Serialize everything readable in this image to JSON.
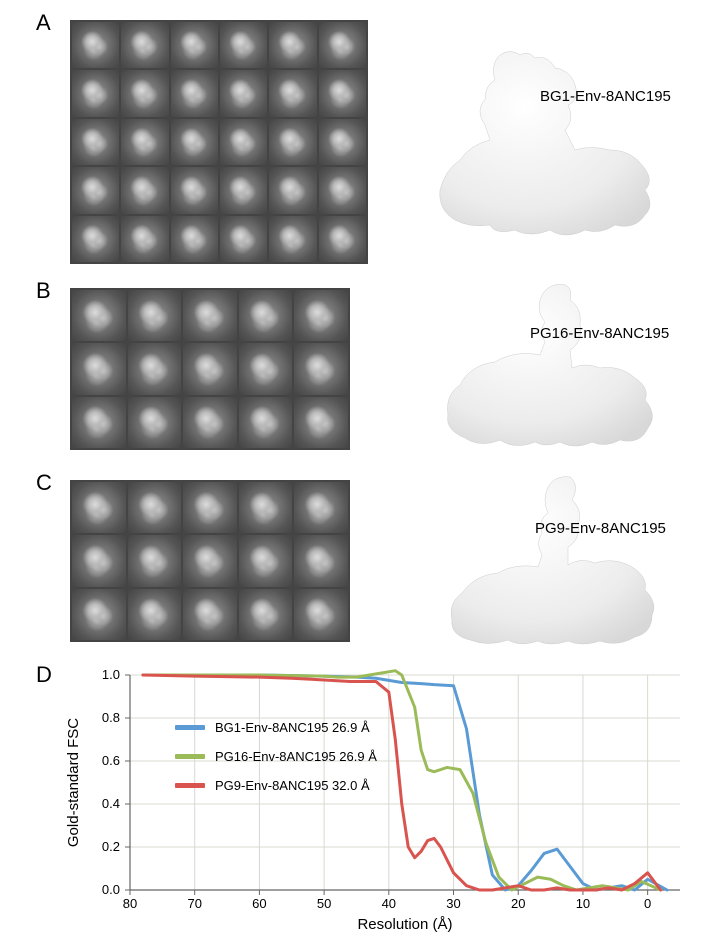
{
  "panels": {
    "A": {
      "label": "A",
      "grid_rows": 5,
      "grid_cols": 6,
      "structure_label": "BG1-Env-8ANC195"
    },
    "B": {
      "label": "B",
      "grid_rows": 3,
      "grid_cols": 5,
      "structure_label": "PG16-Env-8ANC195"
    },
    "C": {
      "label": "C",
      "grid_rows": 3,
      "grid_cols": 5,
      "structure_label": "PG9-Env-8ANC195"
    },
    "D": {
      "label": "D"
    }
  },
  "chart": {
    "type": "line",
    "xlabel": "Resolution (Å)",
    "ylabel": "Gold-standard FSC",
    "xlim": [
      80,
      -5
    ],
    "ylim": [
      0.0,
      1.0
    ],
    "xticks": [
      80,
      70,
      60,
      50,
      40,
      30,
      20,
      10,
      0
    ],
    "yticks": [
      0.0,
      0.2,
      0.4,
      0.6,
      0.8,
      1.0
    ],
    "background_color": "#ffffff",
    "grid_color": "#d9d9d0",
    "axis_color": "#666666",
    "series": [
      {
        "name": "BG1-Env-8ANC195 26.9 Å",
        "color": "#5b9bd5",
        "width": 3,
        "x": [
          78,
          70,
          60,
          50,
          45,
          42,
          40,
          38,
          35,
          33,
          30,
          28,
          26,
          24,
          22,
          20,
          18,
          16,
          14,
          12,
          10,
          8,
          6,
          4,
          2,
          0,
          -3
        ],
        "y": [
          1.0,
          1.0,
          1.0,
          0.995,
          0.99,
          0.985,
          0.975,
          0.965,
          0.96,
          0.955,
          0.95,
          0.75,
          0.35,
          0.07,
          0.0,
          0.02,
          0.09,
          0.17,
          0.19,
          0.11,
          0.03,
          0.0,
          0.01,
          0.02,
          0.0,
          0.05,
          0.0
        ]
      },
      {
        "name": "PG16-Env-8ANC195 26.9 Å",
        "color": "#9bbb59",
        "width": 3,
        "x": [
          78,
          70,
          60,
          50,
          48,
          45,
          43,
          41,
          39,
          38,
          36,
          35,
          34,
          33,
          31,
          29,
          27,
          25,
          23,
          21,
          19,
          17,
          15,
          13,
          11,
          9,
          7,
          5,
          3,
          1,
          -2
        ],
        "y": [
          1.0,
          1.0,
          1.0,
          0.995,
          0.99,
          0.99,
          1.0,
          1.01,
          1.02,
          1.0,
          0.85,
          0.65,
          0.56,
          0.55,
          0.57,
          0.56,
          0.45,
          0.22,
          0.06,
          0.0,
          0.03,
          0.06,
          0.05,
          0.02,
          0.0,
          0.01,
          0.02,
          0.01,
          0.0,
          0.04,
          0.0
        ]
      },
      {
        "name": "PG9-Env-8ANC195 32.0 Å",
        "color": "#d9534f",
        "width": 3,
        "x": [
          78,
          70,
          60,
          55,
          52,
          49,
          46,
          44,
          42,
          40,
          39,
          38,
          37,
          36,
          35,
          34,
          33,
          32,
          30,
          28,
          26,
          24,
          22,
          20,
          18,
          16,
          14,
          12,
          10,
          8,
          6,
          4,
          2,
          0,
          -2
        ],
        "y": [
          1.0,
          0.995,
          0.99,
          0.985,
          0.98,
          0.975,
          0.97,
          0.97,
          0.97,
          0.92,
          0.7,
          0.4,
          0.2,
          0.15,
          0.18,
          0.23,
          0.24,
          0.2,
          0.08,
          0.02,
          0.0,
          0.0,
          0.01,
          0.02,
          0.0,
          0.0,
          0.01,
          0.0,
          0.0,
          0.0,
          0.01,
          0.0,
          0.03,
          0.08,
          0.0
        ]
      }
    ]
  }
}
